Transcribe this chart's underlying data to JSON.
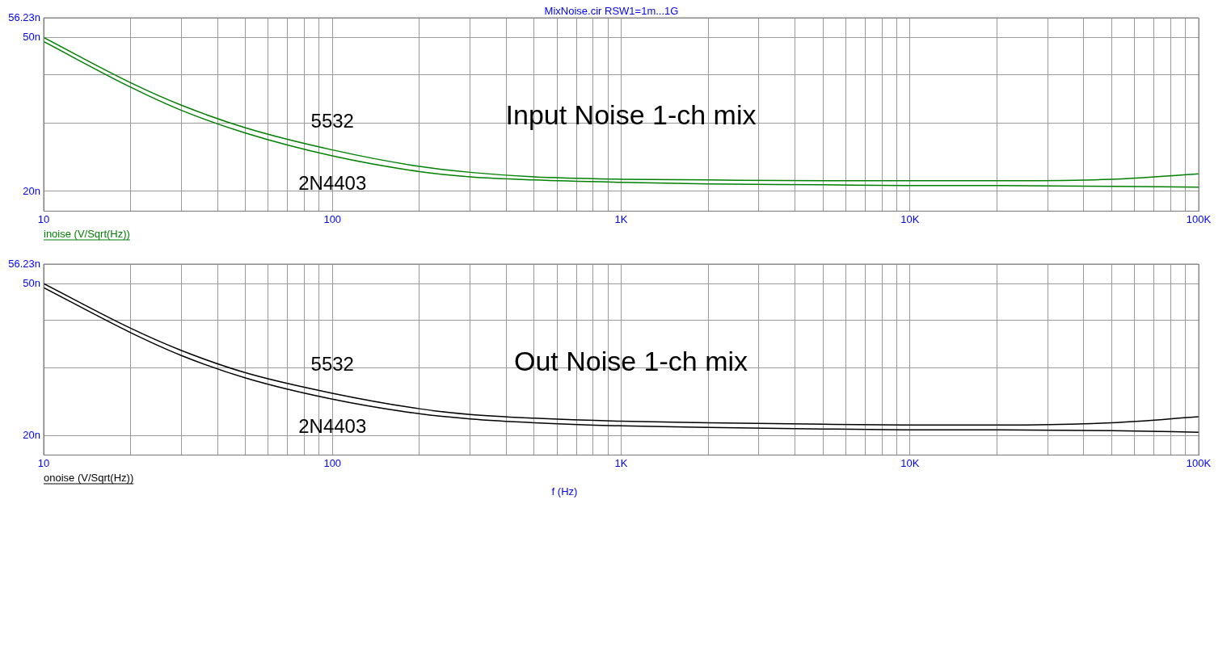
{
  "chart_data": [
    {
      "type": "line",
      "title": "MixNoise.cir RSW1=1m...1G",
      "log": "xy",
      "grid": true,
      "legend": false,
      "marker": "none",
      "line_style": "solid",
      "annotations": [
        "Input Noise 1-ch mix",
        "inoise (V/Sqrt(Hz))"
      ],
      "x": [
        10,
        20,
        30,
        50,
        100,
        200,
        300,
        500,
        1000,
        2000,
        5000,
        10000,
        20000,
        50000,
        100000
      ],
      "xlim": [
        10,
        100000
      ],
      "xticks": [
        {
          "value": 10,
          "label": "10"
        },
        {
          "value": 20,
          "label": null
        },
        {
          "value": 30,
          "label": null
        },
        {
          "value": 40,
          "label": null
        },
        {
          "value": 50,
          "label": null
        },
        {
          "value": 60,
          "label": null
        },
        {
          "value": 70,
          "label": null
        },
        {
          "value": 80,
          "label": null
        },
        {
          "value": 90,
          "label": null
        },
        {
          "value": 100,
          "label": "100"
        },
        {
          "value": 200,
          "label": null
        },
        {
          "value": 300,
          "label": null
        },
        {
          "value": 400,
          "label": null
        },
        {
          "value": 500,
          "label": null
        },
        {
          "value": 600,
          "label": null
        },
        {
          "value": 700,
          "label": null
        },
        {
          "value": 800,
          "label": null
        },
        {
          "value": 900,
          "label": null
        },
        {
          "value": 1000,
          "label": "1K"
        },
        {
          "value": 2000,
          "label": null
        },
        {
          "value": 3000,
          "label": null
        },
        {
          "value": 4000,
          "label": null
        },
        {
          "value": 5000,
          "label": null
        },
        {
          "value": 6000,
          "label": null
        },
        {
          "value": 7000,
          "label": null
        },
        {
          "value": 8000,
          "label": null
        },
        {
          "value": 9000,
          "label": null
        },
        {
          "value": 10000,
          "label": "10K"
        },
        {
          "value": 20000,
          "label": null
        },
        {
          "value": 30000,
          "label": null
        },
        {
          "value": 40000,
          "label": null
        },
        {
          "value": 50000,
          "label": null
        },
        {
          "value": 60000,
          "label": null
        },
        {
          "value": 70000,
          "label": null
        },
        {
          "value": 80000,
          "label": null
        },
        {
          "value": 90000,
          "label": null
        },
        {
          "value": 100000,
          "label": "100K"
        }
      ],
      "ylim": [
        17.78,
        56.23
      ],
      "yticks": [
        {
          "value": 20,
          "label": "20n"
        },
        {
          "value": 30,
          "label": null
        },
        {
          "value": 40,
          "label": null
        },
        {
          "value": 50,
          "label": "50n"
        },
        {
          "value": 56.23,
          "label": "56.23n"
        }
      ],
      "series": [
        {
          "name": "5532",
          "color": "#008000",
          "values": [
            50,
            38.2,
            33.4,
            29.2,
            25.6,
            23.2,
            22.4,
            21.8,
            21.5,
            21.4,
            21.3,
            21.3,
            21.3,
            21.5,
            22.2
          ]
        },
        {
          "name": "2N4403",
          "color": "#008000",
          "values": [
            48.8,
            37.2,
            32.4,
            28.3,
            24.7,
            22.5,
            21.8,
            21.4,
            21.1,
            20.9,
            20.8,
            20.7,
            20.7,
            20.6,
            20.5
          ]
        }
      ]
    },
    {
      "type": "line",
      "xlabel": "f (Hz)",
      "log": "xy",
      "grid": true,
      "legend": false,
      "marker": "none",
      "line_style": "solid",
      "annotations": [
        "Out Noise 1-ch mix",
        "onoise (V/Sqrt(Hz))"
      ],
      "x": [
        10,
        20,
        30,
        50,
        100,
        200,
        300,
        500,
        1000,
        2000,
        5000,
        10000,
        20000,
        50000,
        100000
      ],
      "xlim": [
        10,
        100000
      ],
      "xticks": [
        {
          "value": 10,
          "label": "10"
        },
        {
          "value": 20,
          "label": null
        },
        {
          "value": 30,
          "label": null
        },
        {
          "value": 40,
          "label": null
        },
        {
          "value": 50,
          "label": null
        },
        {
          "value": 60,
          "label": null
        },
        {
          "value": 70,
          "label": null
        },
        {
          "value": 80,
          "label": null
        },
        {
          "value": 90,
          "label": null
        },
        {
          "value": 100,
          "label": "100"
        },
        {
          "value": 200,
          "label": null
        },
        {
          "value": 300,
          "label": null
        },
        {
          "value": 400,
          "label": null
        },
        {
          "value": 500,
          "label": null
        },
        {
          "value": 600,
          "label": null
        },
        {
          "value": 700,
          "label": null
        },
        {
          "value": 800,
          "label": null
        },
        {
          "value": 900,
          "label": null
        },
        {
          "value": 1000,
          "label": "1K"
        },
        {
          "value": 2000,
          "label": null
        },
        {
          "value": 3000,
          "label": null
        },
        {
          "value": 4000,
          "label": null
        },
        {
          "value": 5000,
          "label": null
        },
        {
          "value": 6000,
          "label": null
        },
        {
          "value": 7000,
          "label": null
        },
        {
          "value": 8000,
          "label": null
        },
        {
          "value": 9000,
          "label": null
        },
        {
          "value": 10000,
          "label": "10K"
        },
        {
          "value": 20000,
          "label": null
        },
        {
          "value": 30000,
          "label": null
        },
        {
          "value": 40000,
          "label": null
        },
        {
          "value": 50000,
          "label": null
        },
        {
          "value": 60000,
          "label": null
        },
        {
          "value": 70000,
          "label": null
        },
        {
          "value": 80000,
          "label": null
        },
        {
          "value": 90000,
          "label": null
        },
        {
          "value": 100000,
          "label": "100K"
        }
      ],
      "ylim": [
        17.78,
        56.23
      ],
      "yticks": [
        {
          "value": 20,
          "label": "20n"
        },
        {
          "value": 30,
          "label": null
        },
        {
          "value": 40,
          "label": null
        },
        {
          "value": 50,
          "label": "50n"
        },
        {
          "value": 56.23,
          "label": "56.23n"
        }
      ],
      "series": [
        {
          "name": "5532",
          "color": "#000000",
          "values": [
            50,
            38.2,
            33.4,
            29.2,
            25.8,
            23.5,
            22.7,
            22.2,
            21.8,
            21.6,
            21.4,
            21.3,
            21.3,
            21.6,
            22.4
          ]
        },
        {
          "name": "2N4403",
          "color": "#000000",
          "values": [
            48.8,
            37.2,
            32.4,
            28.3,
            24.9,
            22.8,
            22.1,
            21.6,
            21.2,
            21.0,
            20.8,
            20.7,
            20.7,
            20.6,
            20.4
          ]
        }
      ]
    }
  ]
}
